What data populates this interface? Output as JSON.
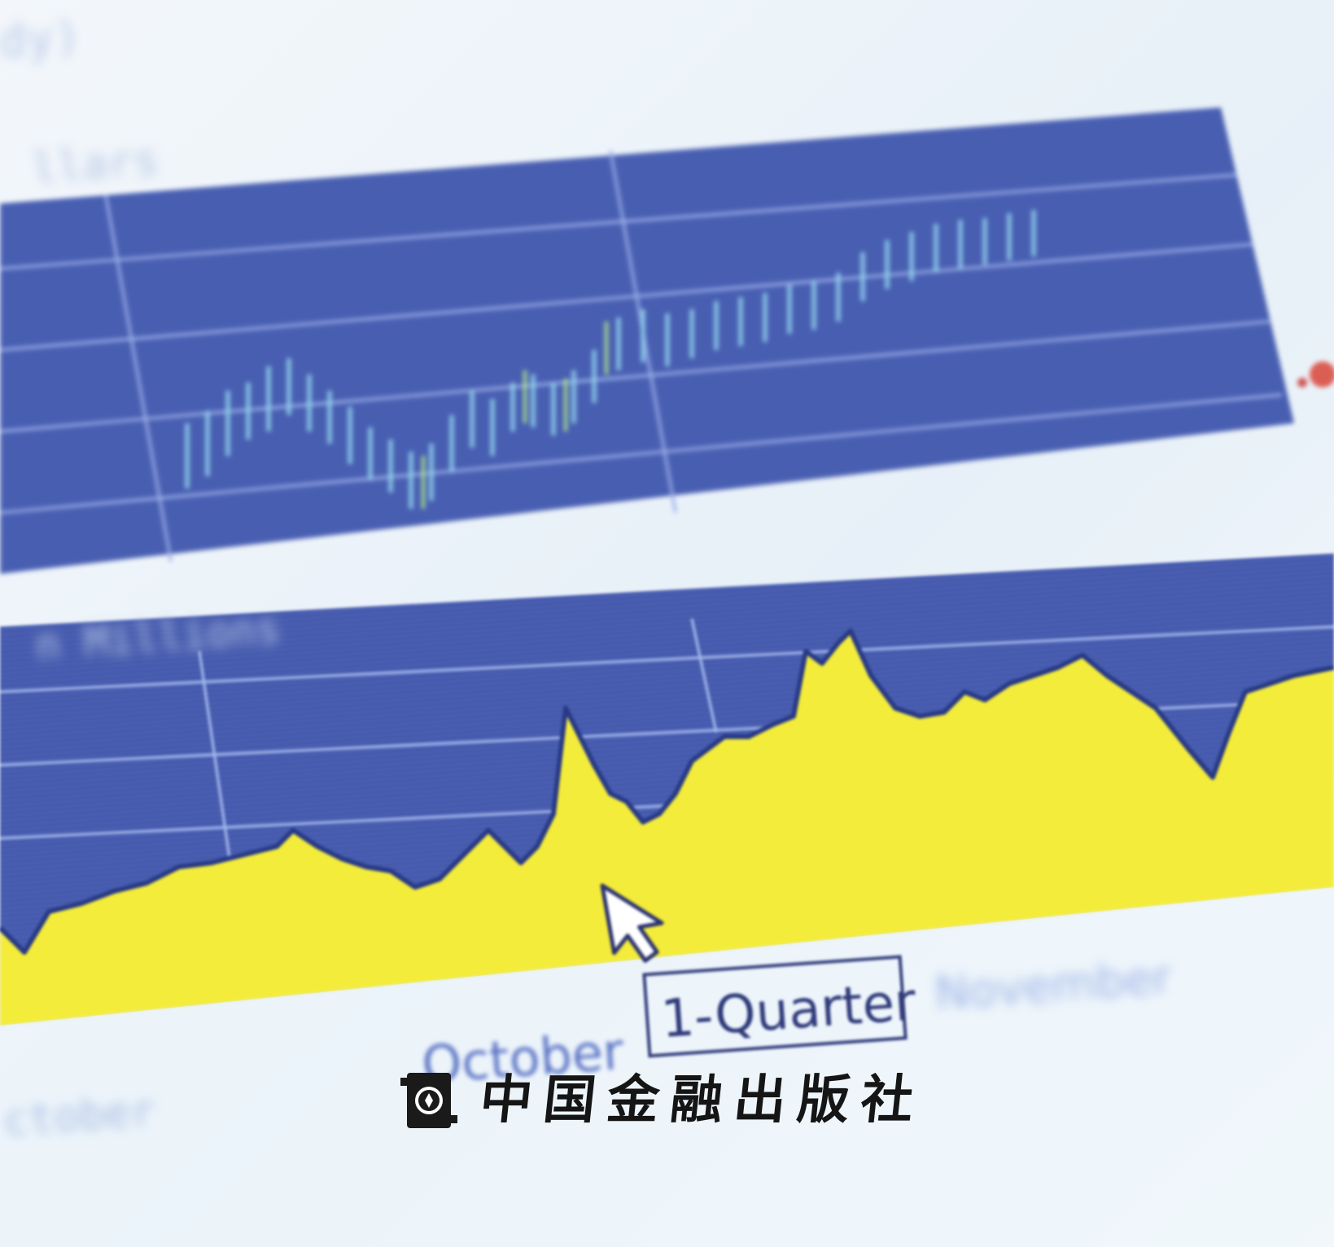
{
  "photo": {
    "top_axis_label": "dy)",
    "upper_panel_label": "llars",
    "lower_panel_label": "n  Millions",
    "x_axis_labels": {
      "left": "ctober",
      "center": "October",
      "selected": "1-Quarter",
      "right": "November"
    },
    "cursor": "arrow-pointer-icon",
    "colors": {
      "panel_blue": "#4a60b3",
      "panel_dark": "#3b4fa3",
      "area_fill_yellow": "#f2ea3a",
      "background": "#eef5fb",
      "grid_line": "#9fb3ea"
    }
  },
  "publisher": {
    "logo_icon": "publisher-seal-icon",
    "name": "中国金融出版社"
  }
}
